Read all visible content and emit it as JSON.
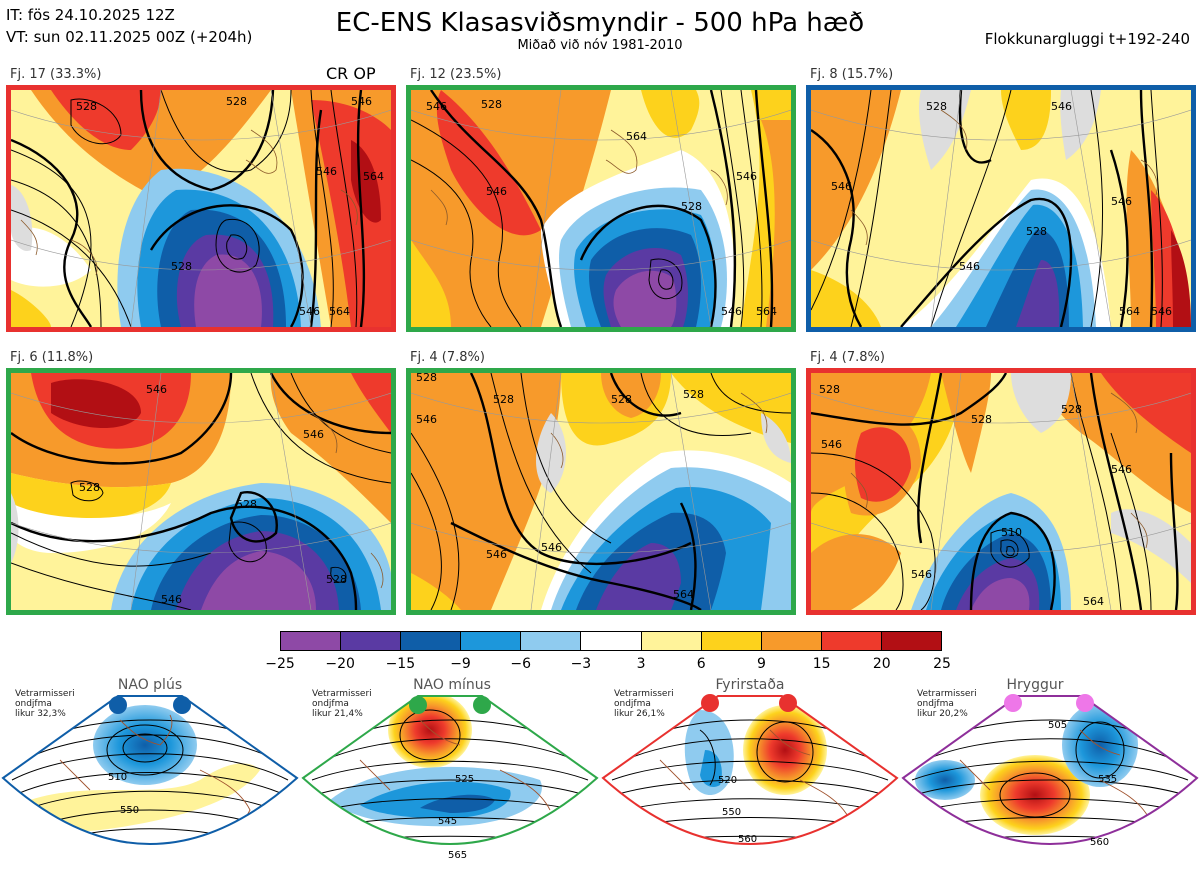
{
  "header": {
    "issue_time": "IT: fös 24.10.2025 12Z",
    "valid_time": "VT: sun 02.11.2025 00Z  (+204h)",
    "title": "EC-ENS Klasasviðsmyndir - 500 hPa hæð",
    "subtitle": "Miðað við nóv 1981-2010",
    "window": "Flokkunargluggi t+192-240"
  },
  "cr_op_label": "CR OP",
  "panels": [
    {
      "label": "Fj. 17 (33.3%)",
      "border": "#e8312f",
      "contours": [
        "528",
        "528",
        "546",
        "546",
        "564",
        "528",
        "546",
        "564"
      ]
    },
    {
      "label": "Fj. 12 (23.5%)",
      "border": "#2ea84a",
      "contours": [
        "546",
        "528",
        "528",
        "546",
        "546",
        "564",
        "546",
        "564"
      ]
    },
    {
      "label": "Fj. 8 (15.7%)",
      "border": "#0f5ea8",
      "contours": [
        "546",
        "528",
        "546",
        "528",
        "546",
        "546",
        "564",
        "546"
      ]
    },
    {
      "label": "Fj. 6 (11.8%)",
      "border": "#2ea84a",
      "contours": [
        "546",
        "528",
        "528",
        "528",
        "546",
        "546"
      ]
    },
    {
      "label": "Fj. 4 (7.8%)",
      "border": "#2ea84a",
      "contours": [
        "528",
        "546",
        "528",
        "528",
        "528",
        "546",
        "546",
        "564"
      ]
    },
    {
      "label": "Fj. 4 (7.8%)",
      "border": "#e8312f",
      "contours": [
        "528",
        "546",
        "528",
        "510",
        "546",
        "546",
        "564",
        "528"
      ]
    }
  ],
  "colorbar": {
    "labels": [
      "−25",
      "−20",
      "−15",
      "−9",
      "−6",
      "−3",
      "3",
      "6",
      "9",
      "15",
      "20",
      "25"
    ],
    "colors": [
      "#8e49a6",
      "#5a3aa3",
      "#0f5ea8",
      "#1d97db",
      "#8fcbef",
      "#ffffff",
      "#fff39a",
      "#fdd21c",
      "#f79a2b",
      "#ee3a2c",
      "#b20f14"
    ]
  },
  "regimes": [
    {
      "title": "NAO plús",
      "note": "Vetrarmisseri\nondjfma\nlikur 32,3%",
      "line1": "Vetrarmisseri",
      "line2": "ondjfma",
      "line3": "likur 32,3%",
      "border": "#0f5ea8",
      "dot": "#0f5ea8",
      "contours": [
        "510",
        "550"
      ]
    },
    {
      "title": "NAO mínus",
      "line1": "Vetrarmisseri",
      "line2": "ondjfma",
      "line3": "likur 21,4%",
      "border": "#2ea84a",
      "dot": "#2ea84a",
      "contours": [
        "525",
        "545",
        "565"
      ]
    },
    {
      "title": "Fyrirstaða",
      "line1": "Vetrarmisseri",
      "line2": "ondjfma",
      "line3": "likur 26,1%",
      "border": "#e8312f",
      "dot": "#e8312f",
      "contours": [
        "520",
        "550",
        "560"
      ]
    },
    {
      "title": "Hryggur",
      "line1": "Vetrarmisseri",
      "line2": "ondjfma",
      "line3": "likur 20,2%",
      "border": "#8e2f9a",
      "dot": "#ee77e8",
      "contours": [
        "505",
        "535",
        "560"
      ]
    }
  ]
}
